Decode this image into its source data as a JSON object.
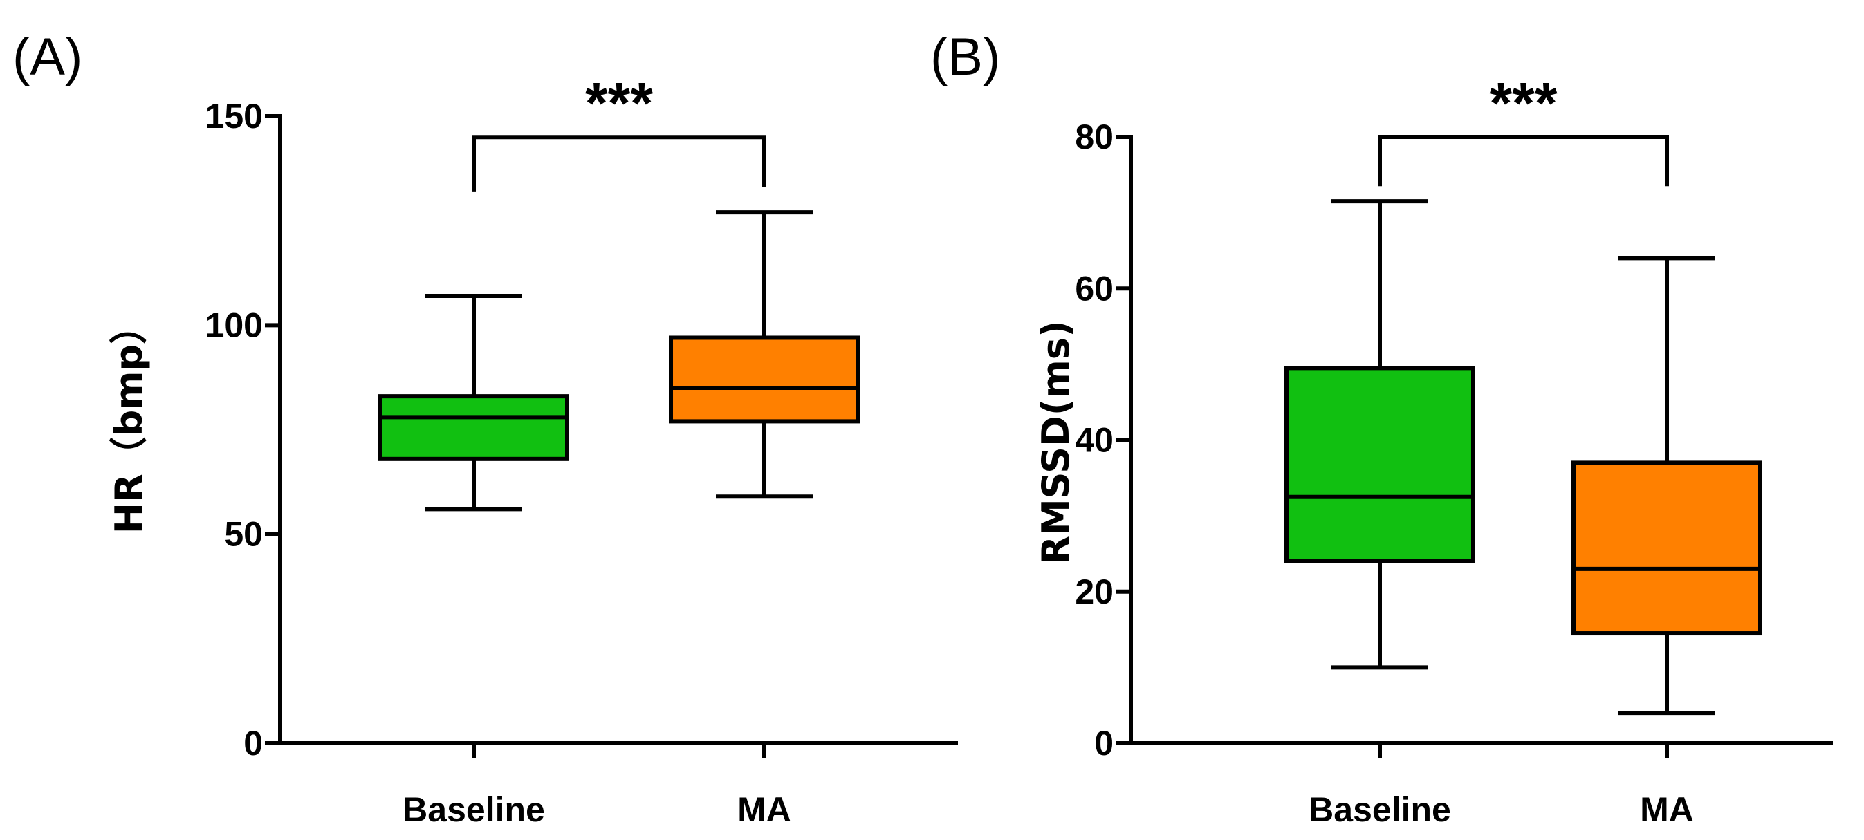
{
  "chart_data": [
    {
      "type": "boxplot",
      "panel": "(A)",
      "ylabel": "HR（bmp）",
      "ylim": [
        0,
        150
      ],
      "yticks": [
        0,
        50,
        100,
        150
      ],
      "categories": [
        "Baseline",
        "MA"
      ],
      "colors": [
        "#11c011",
        "#ff8000"
      ],
      "boxes": [
        {
          "min": 56,
          "q1": 68,
          "median": 78,
          "q3": 83,
          "max": 107
        },
        {
          "min": 59,
          "q1": 77,
          "median": 85,
          "q3": 97,
          "max": 127
        }
      ],
      "significance": {
        "label": "***",
        "from": 0,
        "to": 1,
        "y": 145,
        "drop_left": 132,
        "drop_right": 133
      }
    },
    {
      "type": "boxplot",
      "panel": "(B)",
      "ylabel": "RMSSD(ms)",
      "ylim": [
        0,
        80
      ],
      "yticks": [
        0,
        20,
        40,
        60,
        80
      ],
      "categories": [
        "Baseline",
        "MA"
      ],
      "colors": [
        "#11c011",
        "#ff8000"
      ],
      "boxes": [
        {
          "min": 10,
          "q1": 24,
          "median": 32.5,
          "q3": 49.5,
          "max": 71.5
        },
        {
          "min": 4,
          "q1": 14.5,
          "median": 23,
          "q3": 37,
          "max": 64
        }
      ],
      "significance": {
        "label": "***",
        "from": 0,
        "to": 1,
        "y": 80,
        "drop_left": 73.5,
        "drop_right": 73.5
      }
    }
  ]
}
